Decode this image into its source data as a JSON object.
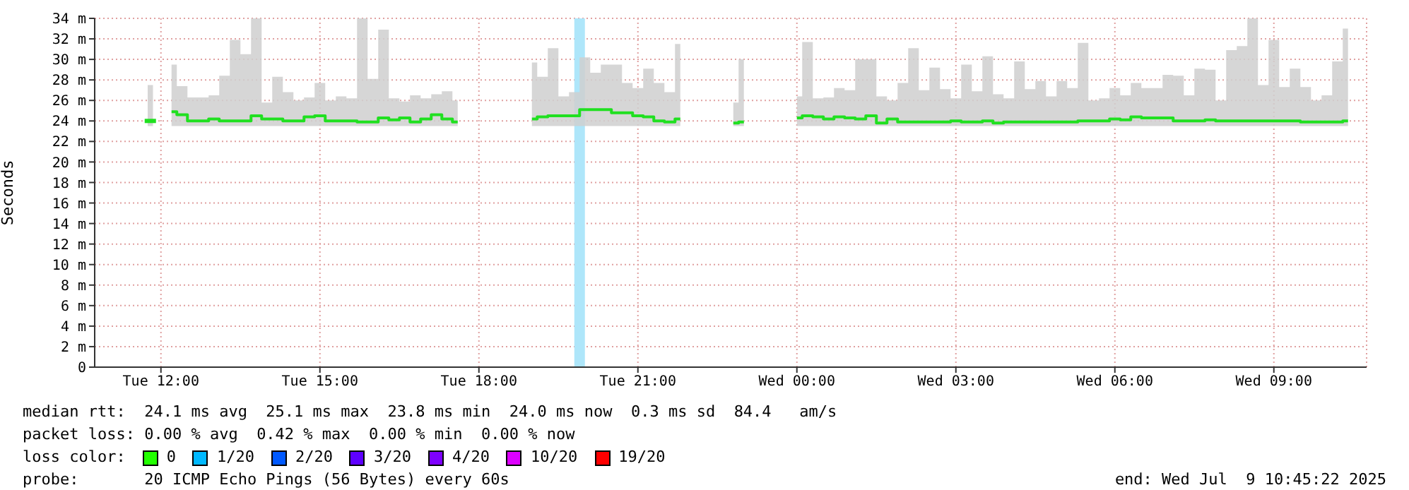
{
  "chart_data": {
    "type": "step",
    "ylabel": "Seconds",
    "x": [
      "2025-07-08T11:48",
      "2025-07-08T12:00",
      "2025-07-08T12:12",
      "2025-07-08T12:24",
      "2025-07-08T12:36",
      "2025-07-08T12:48",
      "2025-07-08T13:00",
      "2025-07-08T13:12",
      "2025-07-08T13:24",
      "2025-07-08T13:36",
      "2025-07-08T13:48",
      "2025-07-08T14:00",
      "2025-07-08T14:12",
      "2025-07-08T14:24",
      "2025-07-08T14:36",
      "2025-07-08T14:48",
      "2025-07-08T15:00",
      "2025-07-08T15:12",
      "2025-07-08T15:24",
      "2025-07-08T15:36",
      "2025-07-08T15:48",
      "2025-07-08T16:00",
      "2025-07-08T16:12",
      "2025-07-08T16:24",
      "2025-07-08T16:36",
      "2025-07-08T16:48",
      "2025-07-08T17:00",
      "2025-07-08T17:12",
      "2025-07-08T17:24",
      "2025-07-08T17:36",
      "2025-07-08T17:48",
      "2025-07-08T18:00",
      "2025-07-08T18:12",
      "2025-07-08T18:24",
      "2025-07-08T18:36",
      "2025-07-08T18:48",
      "2025-07-08T19:00",
      "2025-07-08T19:12",
      "2025-07-08T19:24",
      "2025-07-08T19:36",
      "2025-07-08T19:48",
      "2025-07-08T20:00",
      "2025-07-08T20:12",
      "2025-07-08T20:24",
      "2025-07-08T20:36",
      "2025-07-08T20:48",
      "2025-07-08T21:00",
      "2025-07-08T21:12",
      "2025-07-08T21:24",
      "2025-07-08T21:36",
      "2025-07-08T21:48",
      "2025-07-08T22:00",
      "2025-07-08T22:12",
      "2025-07-08T22:24",
      "2025-07-08T22:36",
      "2025-07-08T22:48",
      "2025-07-08T23:00",
      "2025-07-08T23:12",
      "2025-07-08T23:24",
      "2025-07-08T23:36",
      "2025-07-08T23:48",
      "2025-07-09T00:00",
      "2025-07-09T00:12",
      "2025-07-09T00:24",
      "2025-07-09T00:36",
      "2025-07-09T00:48",
      "2025-07-09T01:00",
      "2025-07-09T01:12",
      "2025-07-09T01:24",
      "2025-07-09T01:36",
      "2025-07-09T01:48",
      "2025-07-09T02:00",
      "2025-07-09T02:12",
      "2025-07-09T02:24",
      "2025-07-09T02:36",
      "2025-07-09T02:48",
      "2025-07-09T03:00",
      "2025-07-09T03:12",
      "2025-07-09T03:24",
      "2025-07-09T03:36",
      "2025-07-09T03:48",
      "2025-07-09T04:00",
      "2025-07-09T04:12",
      "2025-07-09T04:24",
      "2025-07-09T04:36",
      "2025-07-09T04:48",
      "2025-07-09T05:00",
      "2025-07-09T05:12",
      "2025-07-09T05:24",
      "2025-07-09T05:36",
      "2025-07-09T05:48",
      "2025-07-09T06:00",
      "2025-07-09T06:12",
      "2025-07-09T06:24",
      "2025-07-09T06:36",
      "2025-07-09T06:48",
      "2025-07-09T07:00",
      "2025-07-09T07:12",
      "2025-07-09T07:24",
      "2025-07-09T07:36",
      "2025-07-09T07:48",
      "2025-07-09T08:00",
      "2025-07-09T08:12",
      "2025-07-09T08:24",
      "2025-07-09T08:36",
      "2025-07-09T08:48",
      "2025-07-09T09:00",
      "2025-07-09T09:12",
      "2025-07-09T09:24",
      "2025-07-09T09:36",
      "2025-07-09T09:48",
      "2025-07-09T10:00",
      "2025-07-09T10:12",
      "2025-07-09T10:24"
    ],
    "series": [
      {
        "color": "#20e020",
        "values": [
          24.0,
          null,
          24.9,
          24.6,
          24.0,
          24.0,
          24.2,
          24.0,
          24.0,
          24.0,
          24.5,
          24.2,
          24.2,
          24.0,
          24.0,
          24.4,
          24.5,
          24.0,
          24.0,
          24.0,
          23.9,
          23.9,
          24.3,
          24.1,
          24.3,
          23.9,
          24.2,
          24.6,
          24.2,
          23.9,
          null,
          null,
          null,
          null,
          null,
          null,
          24.2,
          24.4,
          24.5,
          24.5,
          24.5,
          25.1,
          25.1,
          25.1,
          24.8,
          24.8,
          24.5,
          24.4,
          24.0,
          23.9,
          24.2,
          null,
          null,
          null,
          null,
          23.8,
          23.9,
          null,
          null,
          null,
          null,
          24.3,
          24.5,
          24.4,
          24.2,
          24.4,
          24.3,
          24.2,
          24.5,
          23.8,
          24.2,
          23.9,
          23.9,
          23.9,
          23.9,
          23.9,
          24.0,
          23.9,
          23.9,
          24.0,
          23.8,
          23.9,
          23.9,
          23.9,
          23.9,
          23.9,
          23.9,
          23.9,
          24.0,
          24.0,
          24.0,
          24.2,
          24.1,
          24.4,
          24.3,
          24.3,
          24.3,
          24.0,
          24.0,
          24.0,
          24.1,
          24.0,
          24.0,
          24.0,
          24.0,
          24.0,
          24.0,
          24.0,
          24.0,
          23.9,
          23.9,
          23.9,
          23.9,
          24.0
        ],
        "lower": [
          23.5,
          null,
          23.5,
          23.5,
          23.5,
          23.5,
          23.5,
          23.5,
          23.5,
          23.5,
          23.5,
          23.5,
          23.5,
          23.5,
          23.5,
          23.5,
          23.5,
          23.5,
          23.5,
          23.5,
          23.5,
          23.5,
          23.5,
          23.5,
          23.5,
          23.5,
          23.5,
          23.5,
          23.5,
          23.5,
          null,
          null,
          null,
          null,
          null,
          null,
          23.5,
          23.5,
          23.5,
          23.5,
          23.5,
          23.5,
          23.5,
          23.5,
          23.5,
          23.5,
          23.5,
          23.5,
          23.5,
          23.5,
          23.5,
          null,
          null,
          null,
          null,
          23.5,
          23.5,
          null,
          null,
          null,
          null,
          23.5,
          23.5,
          23.5,
          23.5,
          23.5,
          23.5,
          23.5,
          23.5,
          23.5,
          23.5,
          23.5,
          23.5,
          23.5,
          23.5,
          23.5,
          23.5,
          23.5,
          23.5,
          23.5,
          23.5,
          23.5,
          23.5,
          23.5,
          23.5,
          23.5,
          23.5,
          23.5,
          23.5,
          23.5,
          23.5,
          23.5,
          23.5,
          23.5,
          23.5,
          23.5,
          23.5,
          23.5,
          23.5,
          23.5,
          23.5,
          23.5,
          23.5,
          23.5,
          23.5,
          23.5,
          23.5,
          23.5,
          23.5,
          23.5,
          23.5,
          23.5,
          23.5,
          23.5
        ],
        "upper": [
          27.5,
          null,
          29.5,
          27.4,
          26.3,
          26.3,
          26.5,
          28.4,
          31.9,
          30.5,
          34.0,
          25.8,
          28.3,
          26.8,
          26.0,
          26.3,
          27.7,
          26.0,
          26.4,
          26.2,
          34.0,
          28.1,
          32.9,
          26.2,
          25.9,
          26.5,
          26.2,
          26.6,
          26.9,
          26.0,
          null,
          null,
          null,
          null,
          null,
          null,
          29.7,
          28.3,
          31.1,
          26.4,
          26.8,
          30.2,
          28.7,
          29.5,
          29.5,
          27.7,
          27.2,
          29.1,
          27.7,
          26.8,
          31.5,
          null,
          null,
          null,
          null,
          25.8,
          30.0,
          null,
          null,
          null,
          null,
          26.4,
          31.7,
          26.2,
          26.3,
          27.2,
          27.0,
          30.0,
          30.0,
          26.4,
          26.0,
          27.7,
          31.1,
          27.0,
          29.2,
          27.1,
          26.2,
          29.5,
          26.9,
          30.3,
          26.6,
          26.2,
          29.8,
          27.1,
          27.9,
          26.4,
          27.9,
          27.2,
          31.6,
          26.0,
          26.2,
          27.2,
          26.5,
          27.7,
          27.2,
          27.2,
          28.5,
          28.4,
          26.5,
          29.1,
          29.0,
          26.0,
          30.9,
          31.3,
          34.0,
          27.5,
          31.9,
          27.3,
          29.1,
          27.3,
          26.0,
          26.5,
          29.8,
          33.0
        ]
      }
    ],
    "xlim": [
      "2025-07-08T10:45",
      "2025-07-09T10:45"
    ],
    "xticks": [
      {
        "value": "2025-07-08T12:00",
        "label": "Tue 12:00"
      },
      {
        "value": "2025-07-08T15:00",
        "label": "Tue 15:00"
      },
      {
        "value": "2025-07-08T18:00",
        "label": "Tue 18:00"
      },
      {
        "value": "2025-07-08T21:00",
        "label": "Tue 21:00"
      },
      {
        "value": "2025-07-09T00:00",
        "label": "Wed 00:00"
      },
      {
        "value": "2025-07-09T03:00",
        "label": "Wed 03:00"
      },
      {
        "value": "2025-07-09T06:00",
        "label": "Wed 06:00"
      },
      {
        "value": "2025-07-09T09:00",
        "label": "Wed 09:00"
      }
    ],
    "ylim": [
      0,
      34
    ],
    "yticks": [
      0,
      {
        "value": 2,
        "label": "2 m"
      },
      {
        "value": 4,
        "label": "4 m"
      },
      {
        "value": 6,
        "label": "6 m"
      },
      {
        "value": 8,
        "label": "8 m"
      },
      {
        "value": 10,
        "label": "10 m"
      },
      {
        "value": 12,
        "label": "12 m"
      },
      {
        "value": 14,
        "label": "14 m"
      },
      {
        "value": 16,
        "label": "16 m"
      },
      {
        "value": 18,
        "label": "18 m"
      },
      {
        "value": 20,
        "label": "20 m"
      },
      {
        "value": 22,
        "label": "22 m"
      },
      {
        "value": 24,
        "label": "24 m"
      },
      {
        "value": 26,
        "label": "26 m"
      },
      {
        "value": 28,
        "label": "28 m"
      },
      {
        "value": 30,
        "label": "30 m"
      },
      {
        "value": 32,
        "label": "32 m"
      },
      {
        "value": 34,
        "label": "34 m"
      }
    ],
    "bands": [
      {
        "axis": "x",
        "from": "2025-07-08T19:48",
        "to": "2025-07-08T20:00",
        "color": "#aee6fa"
      }
    ],
    "grid": true,
    "annotations": [
      "median rtt:  24.1 ms avg  25.1 ms max  23.8 ms min  24.0 ms now  0.3 ms sd  84.4   am/s",
      "packet loss: 0.00 % avg  0.42 % max  0.00 % min  0.00 % now",
      "loss color:",
      "0",
      "1/20",
      "2/20",
      "3/20",
      "4/20",
      "10/20",
      "19/20",
      "probe:       20 ICMP Echo Pings (56 Bytes) every 60s",
      "end: Wed Jul  9 10:45:22 2025"
    ]
  }
}
